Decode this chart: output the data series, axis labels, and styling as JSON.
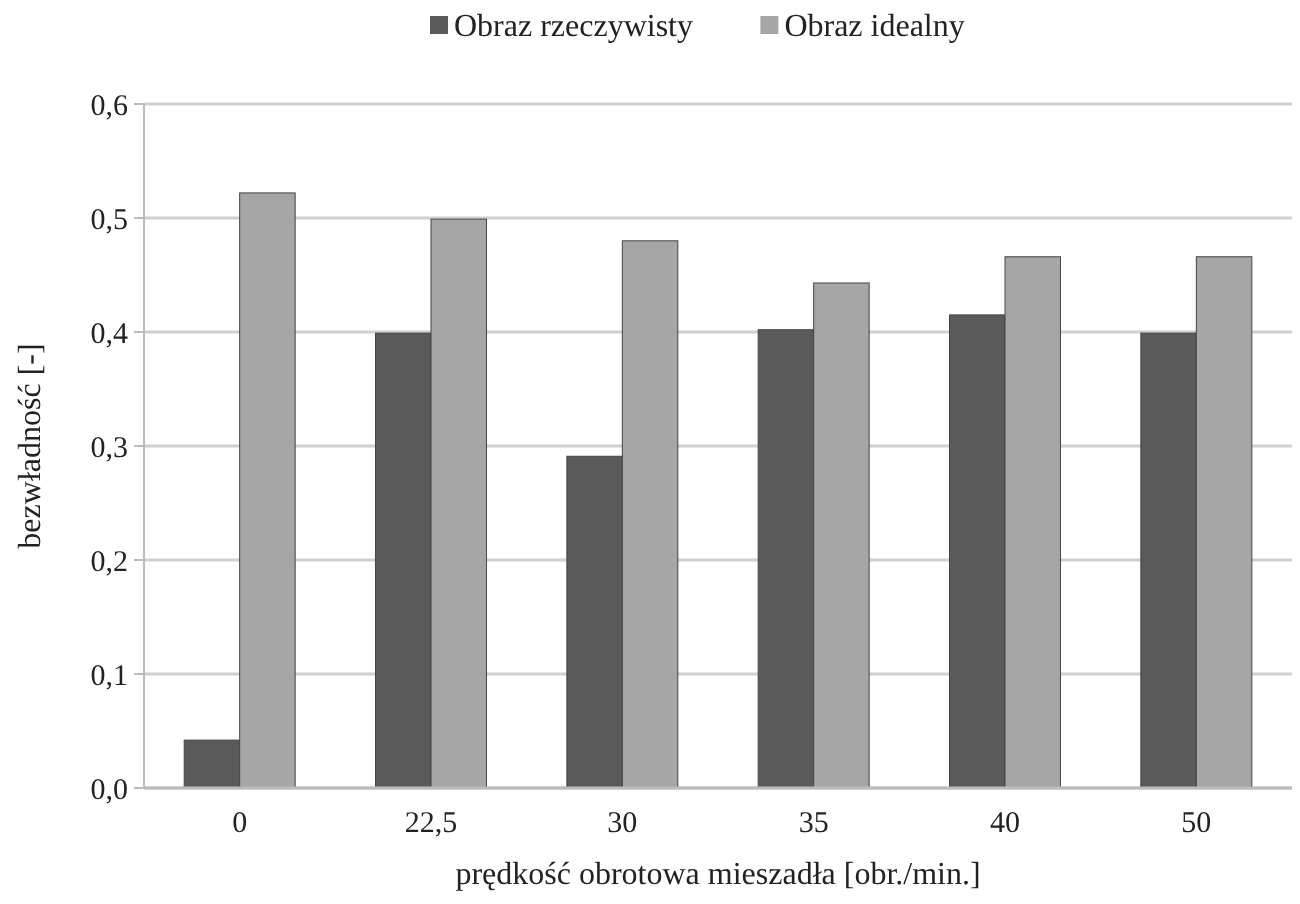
{
  "chart_data": {
    "type": "bar",
    "xlabel": "prędkość obrotowa mieszadła [obr./min.]",
    "ylabel": "bezwładność [-]",
    "categories": [
      "0",
      "22,5",
      "30",
      "35",
      "40",
      "50"
    ],
    "series": [
      {
        "name": "Obraz rzeczywisty",
        "color": "#5a5a5a",
        "values": [
          0.042,
          0.399,
          0.291,
          0.402,
          0.415,
          0.399
        ]
      },
      {
        "name": "Obraz idealny",
        "color": "#a6a6a6",
        "values": [
          0.522,
          0.499,
          0.48,
          0.443,
          0.466,
          0.466
        ]
      }
    ],
    "ylim": [
      0,
      0.6
    ],
    "yticks": [
      {
        "value": 0,
        "label": "0,0"
      },
      {
        "value": 0.1,
        "label": "0,1"
      },
      {
        "value": 0.2,
        "label": "0,2"
      },
      {
        "value": 0.3,
        "label": "0,3"
      },
      {
        "value": 0.4,
        "label": "0,4"
      },
      {
        "value": 0.5,
        "label": "0,5"
      },
      {
        "value": 0.6,
        "label": "0,6"
      }
    ],
    "grid": "y",
    "legend": "top"
  }
}
